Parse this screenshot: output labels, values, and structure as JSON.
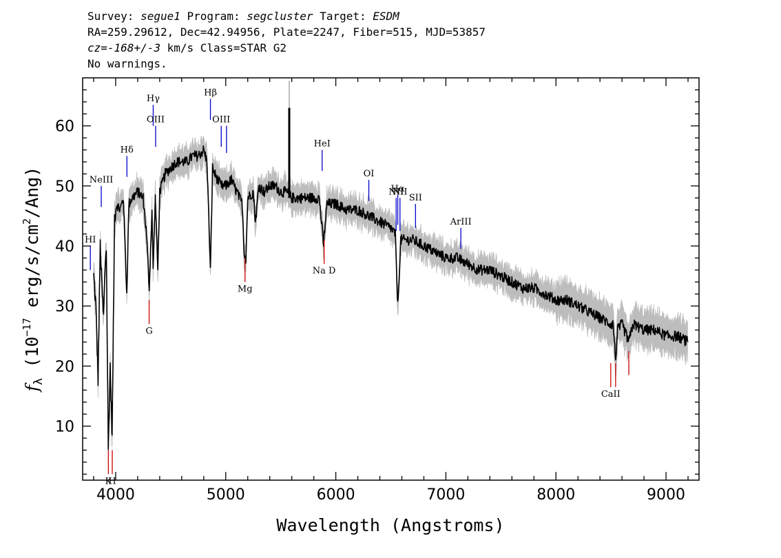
{
  "header": {
    "survey_label": "Survey:",
    "survey": "segue1",
    "program_label": "Program:",
    "program": "segcluster",
    "target_label": "Target:",
    "target": "ESDM",
    "line2": "RA=259.29612, Dec=42.94956, Plate=2247, Fiber=515, MJD=53857",
    "cz_prefix": "cz=",
    "cz_value": "-168+/-3",
    "cz_suffix": " km/s Class=STAR G2",
    "line4": "No warnings."
  },
  "chart_data": {
    "type": "line",
    "xlabel": "Wavelength (Angstroms)",
    "ylabel": "f_λ (10^-17 erg/s/cm^2/Ang)",
    "ylabel_parts": {
      "f": "f",
      "sub": "λ",
      "pre": " (10",
      "sup1": "−17",
      "mid": " erg/s/cm",
      "sup2": "2",
      "post": "/Ang)"
    },
    "xlim": [
      3700,
      9300
    ],
    "ylim": [
      1,
      68
    ],
    "xticks": [
      4000,
      5000,
      6000,
      7000,
      8000,
      9000
    ],
    "yticks": [
      10,
      20,
      30,
      40,
      50,
      60
    ],
    "colors": {
      "spectrum": "#000000",
      "error_band": "#bdbdbd",
      "emission": "#0000cc",
      "absorption": "#cc0000"
    },
    "spectrum_anchors": [
      [
        3800,
        35
      ],
      [
        3820,
        30
      ],
      [
        3840,
        18
      ],
      [
        3860,
        40
      ],
      [
        3875,
        33
      ],
      [
        3890,
        28
      ],
      [
        3905,
        37
      ],
      [
        3915,
        40
      ],
      [
        3933,
        6
      ],
      [
        3950,
        20
      ],
      [
        3968,
        8
      ],
      [
        3990,
        45
      ],
      [
        4010,
        47
      ],
      [
        4040,
        46
      ],
      [
        4070,
        48
      ],
      [
        4101,
        32
      ],
      [
        4120,
        47
      ],
      [
        4150,
        48
      ],
      [
        4200,
        49
      ],
      [
        4250,
        48
      ],
      [
        4280,
        42
      ],
      [
        4305,
        33
      ],
      [
        4330,
        46
      ],
      [
        4340,
        36
      ],
      [
        4360,
        48
      ],
      [
        4383,
        36
      ],
      [
        4400,
        49
      ],
      [
        4450,
        52
      ],
      [
        4500,
        53
      ],
      [
        4550,
        54
      ],
      [
        4600,
        54
      ],
      [
        4650,
        54
      ],
      [
        4700,
        55
      ],
      [
        4750,
        55
      ],
      [
        4800,
        56
      ],
      [
        4830,
        54
      ],
      [
        4861,
        36
      ],
      [
        4880,
        53
      ],
      [
        4900,
        52
      ],
      [
        4957,
        50
      ],
      [
        5000,
        50
      ],
      [
        5050,
        51
      ],
      [
        5100,
        49
      ],
      [
        5150,
        47
      ],
      [
        5167,
        39
      ],
      [
        5183,
        38
      ],
      [
        5200,
        48
      ],
      [
        5250,
        49
      ],
      [
        5270,
        44
      ],
      [
        5300,
        50
      ],
      [
        5350,
        49
      ],
      [
        5400,
        50
      ],
      [
        5450,
        50
      ],
      [
        5500,
        49
      ],
      [
        5550,
        49
      ],
      [
        5600,
        48
      ],
      [
        5650,
        48
      ],
      [
        5700,
        48
      ],
      [
        5750,
        48
      ],
      [
        5800,
        48
      ],
      [
        5850,
        48
      ],
      [
        5890,
        40
      ],
      [
        5896,
        42
      ],
      [
        5920,
        47
      ],
      [
        6000,
        47
      ],
      [
        6100,
        46
      ],
      [
        6200,
        46
      ],
      [
        6300,
        45
      ],
      [
        6400,
        44
      ],
      [
        6500,
        43
      ],
      [
        6540,
        42
      ],
      [
        6563,
        30
      ],
      [
        6590,
        41
      ],
      [
        6700,
        41
      ],
      [
        6800,
        40
      ],
      [
        6900,
        39
      ],
      [
        7000,
        38
      ],
      [
        7100,
        38
      ],
      [
        7200,
        37
      ],
      [
        7300,
        36
      ],
      [
        7400,
        36
      ],
      [
        7500,
        35
      ],
      [
        7600,
        34
      ],
      [
        7700,
        33
      ],
      [
        7800,
        33
      ],
      [
        7900,
        32
      ],
      [
        8000,
        31
      ],
      [
        8100,
        31
      ],
      [
        8200,
        30
      ],
      [
        8300,
        29
      ],
      [
        8400,
        28
      ],
      [
        8498,
        27
      ],
      [
        8520,
        27
      ],
      [
        8542,
        21
      ],
      [
        8560,
        26
      ],
      [
        8600,
        27
      ],
      [
        8662,
        24
      ],
      [
        8700,
        27
      ],
      [
        8800,
        26
      ],
      [
        8900,
        26
      ],
      [
        9000,
        25
      ],
      [
        9100,
        25
      ],
      [
        9200,
        24
      ]
    ],
    "sky_line": {
      "x": 5577,
      "y_top": 63,
      "y_bottom": 48
    },
    "emission_lines": [
      {
        "label": "HI",
        "x": 3770,
        "y": 40,
        "len": 4
      },
      {
        "label": "NeIII",
        "x": 3869,
        "y": 50,
        "len": 3.5
      },
      {
        "label": "Hδ",
        "x": 4102,
        "y": 55,
        "len": 3.5
      },
      {
        "label": "Hγ",
        "x": 4341,
        "y": 63.5,
        "len": 3.5
      },
      {
        "label": "OIII",
        "x": 4363,
        "y": 60,
        "len": 3.5
      },
      {
        "label": "Hβ",
        "x": 4861,
        "y": 64.5,
        "len": 3.5
      },
      {
        "label": "OIII",
        "x": 4959,
        "y": 60,
        "len": 3.5
      },
      {
        "label": "",
        "x": 5007,
        "y": 60,
        "len": 4.5
      },
      {
        "label": "HeI",
        "x": 5876,
        "y": 56,
        "len": 3.5
      },
      {
        "label": "OI",
        "x": 6300,
        "y": 51,
        "len": 3.5
      },
      {
        "label": "NII",
        "x": 6548,
        "y": 48,
        "len": 5.5
      },
      {
        "label": "Hα",
        "x": 6563,
        "y": 48.5,
        "len": 5
      },
      {
        "label": "NII",
        "x": 6583,
        "y": 48,
        "len": 5.5
      },
      {
        "label": "SII",
        "x": 6724,
        "y": 47,
        "len": 4
      },
      {
        "label": "ArIII",
        "x": 7136,
        "y": 43,
        "len": 3.5
      }
    ],
    "absorption_lines": [
      {
        "label": "K",
        "x": 3934,
        "y": 2,
        "len": 4
      },
      {
        "label": "H",
        "x": 3969,
        "y": 2,
        "len": 4
      },
      {
        "label": "G",
        "x": 4304,
        "y": 27,
        "len": 4
      },
      {
        "label": "Mg",
        "x": 5175,
        "y": 34,
        "len": 4
      },
      {
        "label": "Na D",
        "x": 5894,
        "y": 37,
        "len": 4
      },
      {
        "label": "CaII",
        "x": 8498,
        "y": 16.5,
        "len": 4
      },
      {
        "label": "",
        "x": 8542,
        "y": 16.5,
        "len": 4
      },
      {
        "label": "",
        "x": 8662,
        "y": 18.5,
        "len": 4
      }
    ]
  }
}
